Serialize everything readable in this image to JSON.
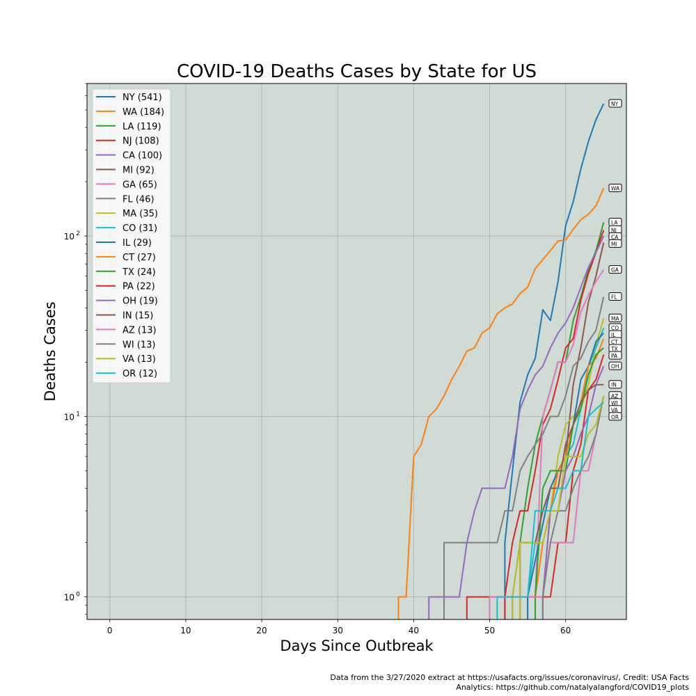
{
  "chart_data": {
    "type": "line",
    "title": "COVID-19 Deaths Cases by State for US",
    "xlabel": "Days Since Outbreak",
    "ylabel": "Deaths Cases",
    "xlim": [
      -3,
      68
    ],
    "ylim": [
      0.75,
      700
    ],
    "yscale": "log",
    "x_ticks": [
      0,
      10,
      20,
      30,
      40,
      50,
      60
    ],
    "y_ticks": [
      1,
      10,
      100
    ],
    "y_tick_labels": [
      [
        "10",
        "0"
      ],
      [
        "10",
        "1"
      ],
      [
        "10",
        "2"
      ]
    ],
    "grid": true,
    "legend_position": "top-left",
    "background_color": "#d0dbd6",
    "series": [
      {
        "name": "NY (541)",
        "label": "NY",
        "color": "#1f77b4",
        "points": [
          [
            52,
            1
          ],
          [
            52,
            2
          ],
          [
            53,
            5
          ],
          [
            54,
            12
          ],
          [
            55,
            17
          ],
          [
            56,
            21
          ],
          [
            57,
            39
          ],
          [
            58,
            34
          ],
          [
            59,
            56
          ],
          [
            60,
            114
          ],
          [
            61,
            155
          ],
          [
            62,
            235
          ],
          [
            63,
            334
          ],
          [
            64,
            442
          ],
          [
            65,
            541
          ]
        ]
      },
      {
        "name": "WA (184)",
        "label": "WA",
        "color": "#ff7f0e",
        "points": [
          [
            38,
            1
          ],
          [
            39,
            1
          ],
          [
            40,
            6
          ],
          [
            41,
            7
          ],
          [
            42,
            10
          ],
          [
            43,
            11
          ],
          [
            44,
            13
          ],
          [
            45,
            16
          ],
          [
            46,
            19
          ],
          [
            47,
            23
          ],
          [
            48,
            24
          ],
          [
            49,
            29
          ],
          [
            50,
            31
          ],
          [
            51,
            37
          ],
          [
            52,
            40
          ],
          [
            53,
            42
          ],
          [
            54,
            48
          ],
          [
            55,
            52
          ],
          [
            56,
            66
          ],
          [
            57,
            74
          ],
          [
            58,
            83
          ],
          [
            59,
            94
          ],
          [
            60,
            95
          ],
          [
            61,
            109
          ],
          [
            62,
            123
          ],
          [
            63,
            132
          ],
          [
            64,
            147
          ],
          [
            65,
            184
          ]
        ]
      },
      {
        "name": "LA (119)",
        "label": "LA",
        "color": "#2ca02c",
        "points": [
          [
            53,
            1
          ],
          [
            54,
            2
          ],
          [
            55,
            4
          ],
          [
            56,
            7
          ],
          [
            57,
            10
          ],
          [
            58,
            14
          ],
          [
            59,
            20
          ],
          [
            60,
            20
          ],
          [
            61,
            34
          ],
          [
            62,
            46
          ],
          [
            63,
            65
          ],
          [
            64,
            83
          ],
          [
            65,
            119
          ]
        ]
      },
      {
        "name": "NJ (108)",
        "label": "NJ",
        "color": "#d62728",
        "points": [
          [
            52,
            1
          ],
          [
            53,
            2
          ],
          [
            54,
            3
          ],
          [
            55,
            3
          ],
          [
            56,
            5
          ],
          [
            57,
            9
          ],
          [
            58,
            11
          ],
          [
            59,
            16
          ],
          [
            60,
            24
          ],
          [
            61,
            27
          ],
          [
            62,
            44
          ],
          [
            63,
            62
          ],
          [
            64,
            81
          ],
          [
            65,
            108
          ]
        ]
      },
      {
        "name": "CA (100)",
        "label": "CA",
        "color": "#9467bd",
        "points": [
          [
            42,
            1
          ],
          [
            46,
            1
          ],
          [
            47,
            2
          ],
          [
            48,
            3
          ],
          [
            49,
            4
          ],
          [
            52,
            4
          ],
          [
            53,
            6
          ],
          [
            54,
            11
          ],
          [
            55,
            14
          ],
          [
            56,
            17
          ],
          [
            57,
            19
          ],
          [
            58,
            24
          ],
          [
            59,
            29
          ],
          [
            60,
            33
          ],
          [
            61,
            40
          ],
          [
            62,
            52
          ],
          [
            63,
            67
          ],
          [
            64,
            81
          ],
          [
            65,
            100
          ]
        ]
      },
      {
        "name": "MI (92)",
        "label": "MI",
        "color": "#8c564b",
        "points": [
          [
            57,
            1
          ],
          [
            58,
            3
          ],
          [
            59,
            5
          ],
          [
            60,
            6
          ],
          [
            61,
            15
          ],
          [
            62,
            24
          ],
          [
            63,
            43
          ],
          [
            64,
            60
          ],
          [
            65,
            92
          ]
        ]
      },
      {
        "name": "GA (65)",
        "label": "GA",
        "color": "#e377c2",
        "points": [
          [
            55,
            1
          ],
          [
            56,
            1
          ],
          [
            57,
            10
          ],
          [
            58,
            14
          ],
          [
            59,
            20
          ],
          [
            60,
            20
          ],
          [
            61,
            25
          ],
          [
            62,
            38
          ],
          [
            63,
            47
          ],
          [
            64,
            56
          ],
          [
            65,
            65
          ]
        ]
      },
      {
        "name": "FL (46)",
        "label": "FL",
        "color": "#7f7f7f",
        "points": [
          [
            44,
            1
          ],
          [
            44,
            2
          ],
          [
            51,
            2
          ],
          [
            52,
            3
          ],
          [
            53,
            3
          ],
          [
            54,
            5
          ],
          [
            55,
            6
          ],
          [
            56,
            7
          ],
          [
            57,
            8
          ],
          [
            58,
            10
          ],
          [
            59,
            10
          ],
          [
            60,
            13
          ],
          [
            61,
            19
          ],
          [
            62,
            21
          ],
          [
            63,
            26
          ],
          [
            64,
            30
          ],
          [
            65,
            46
          ]
        ]
      },
      {
        "name": "MA (35)",
        "label": "MA",
        "color": "#bcbd22",
        "points": [
          [
            53,
            1
          ],
          [
            54,
            2
          ],
          [
            57,
            2
          ],
          [
            58,
            3
          ],
          [
            59,
            6
          ],
          [
            60,
            9
          ],
          [
            61,
            10
          ],
          [
            62,
            11
          ],
          [
            63,
            15
          ],
          [
            64,
            25
          ],
          [
            65,
            35
          ]
        ]
      },
      {
        "name": "CO (31)",
        "label": "CO",
        "color": "#17becf",
        "points": [
          [
            55,
            1
          ],
          [
            56,
            2
          ],
          [
            57,
            3
          ],
          [
            58,
            4
          ],
          [
            59,
            5
          ],
          [
            60,
            6
          ],
          [
            61,
            7
          ],
          [
            62,
            11
          ],
          [
            63,
            19
          ],
          [
            64,
            24
          ],
          [
            65,
            31
          ]
        ]
      },
      {
        "name": "IL (29)",
        "label": "IL",
        "color": "#1f77b4",
        "points": [
          [
            55,
            1
          ],
          [
            58,
            4
          ],
          [
            59,
            5
          ],
          [
            60,
            6
          ],
          [
            61,
            9
          ],
          [
            62,
            16
          ],
          [
            63,
            19
          ],
          [
            64,
            26
          ],
          [
            65,
            29
          ]
        ]
      },
      {
        "name": "CT (27)",
        "label": "CT",
        "color": "#ff7f0e",
        "points": [
          [
            56,
            1
          ],
          [
            57,
            2
          ],
          [
            58,
            3
          ],
          [
            59,
            5
          ],
          [
            60,
            6
          ],
          [
            61,
            9
          ],
          [
            62,
            12
          ],
          [
            63,
            19
          ],
          [
            64,
            21
          ],
          [
            65,
            27
          ]
        ]
      },
      {
        "name": "TX (24)",
        "label": "TX",
        "color": "#2ca02c",
        "points": [
          [
            56,
            1
          ],
          [
            57,
            4
          ],
          [
            58,
            5
          ],
          [
            59,
            5
          ],
          [
            60,
            5
          ],
          [
            61,
            9
          ],
          [
            62,
            11
          ],
          [
            63,
            17
          ],
          [
            64,
            22
          ],
          [
            65,
            24
          ]
        ]
      },
      {
        "name": "PA (22)",
        "label": "PA",
        "color": "#d62728",
        "points": [
          [
            47,
            1
          ],
          [
            50,
            1
          ],
          [
            51,
            1
          ],
          [
            56,
            1
          ],
          [
            57,
            1
          ],
          [
            58,
            1
          ],
          [
            59,
            2
          ],
          [
            60,
            2
          ],
          [
            61,
            5
          ],
          [
            62,
            7
          ],
          [
            63,
            14
          ],
          [
            64,
            16
          ],
          [
            65,
            22
          ]
        ]
      },
      {
        "name": "OH (19)",
        "label": "OH",
        "color": "#9467bd",
        "points": [
          [
            57,
            1
          ],
          [
            58,
            3
          ],
          [
            59,
            3
          ],
          [
            60,
            5
          ],
          [
            61,
            6
          ],
          [
            62,
            8
          ],
          [
            63,
            10
          ],
          [
            64,
            15
          ],
          [
            65,
            19
          ]
        ]
      },
      {
        "name": "IN (15)",
        "label": "IN",
        "color": "#8c564b",
        "points": [
          [
            54,
            1
          ],
          [
            54,
            2
          ],
          [
            56,
            2
          ],
          [
            57,
            3
          ],
          [
            58,
            4
          ],
          [
            59,
            4
          ],
          [
            60,
            7
          ],
          [
            61,
            9
          ],
          [
            62,
            12
          ],
          [
            63,
            14
          ],
          [
            64,
            15
          ],
          [
            65,
            15
          ]
        ]
      },
      {
        "name": "AZ (13)",
        "label": "AZ",
        "color": "#e377c2",
        "points": [
          [
            50,
            1
          ],
          [
            57,
            1
          ],
          [
            58,
            2
          ],
          [
            59,
            2
          ],
          [
            60,
            2
          ],
          [
            61,
            2
          ],
          [
            62,
            5
          ],
          [
            63,
            5
          ],
          [
            64,
            8
          ],
          [
            65,
            13
          ]
        ]
      },
      {
        "name": "WI (13)",
        "label": "WI",
        "color": "#7f7f7f",
        "points": [
          [
            57,
            1
          ],
          [
            58,
            2
          ],
          [
            59,
            3
          ],
          [
            60,
            3
          ],
          [
            61,
            4
          ],
          [
            62,
            5
          ],
          [
            63,
            6
          ],
          [
            64,
            8
          ],
          [
            65,
            13
          ]
        ]
      },
      {
        "name": "VA (13)",
        "label": "VA",
        "color": "#bcbd22",
        "points": [
          [
            54,
            2
          ],
          [
            55,
            2
          ],
          [
            56,
            2
          ],
          [
            57,
            2
          ],
          [
            58,
            3
          ],
          [
            59,
            3
          ],
          [
            60,
            6
          ],
          [
            61,
            6
          ],
          [
            62,
            6
          ],
          [
            63,
            8
          ],
          [
            64,
            9
          ],
          [
            65,
            13
          ]
        ]
      },
      {
        "name": "OR (12)",
        "label": "OR",
        "color": "#17becf",
        "points": [
          [
            51,
            1
          ],
          [
            53,
            1
          ],
          [
            54,
            1
          ],
          [
            55,
            1
          ],
          [
            56,
            3
          ],
          [
            57,
            3
          ],
          [
            58,
            3
          ],
          [
            59,
            4
          ],
          [
            60,
            4
          ],
          [
            61,
            5
          ],
          [
            62,
            5
          ],
          [
            63,
            10
          ],
          [
            64,
            11
          ],
          [
            65,
            12
          ]
        ]
      }
    ]
  },
  "footer": {
    "line1": "Data from the 3/27/2020 extract at https://usafacts.org/issues/coronavirus/, Credit: USA Facts",
    "line2": "Analytics: https://github.com/natalyalangford/COVID19_plots"
  }
}
